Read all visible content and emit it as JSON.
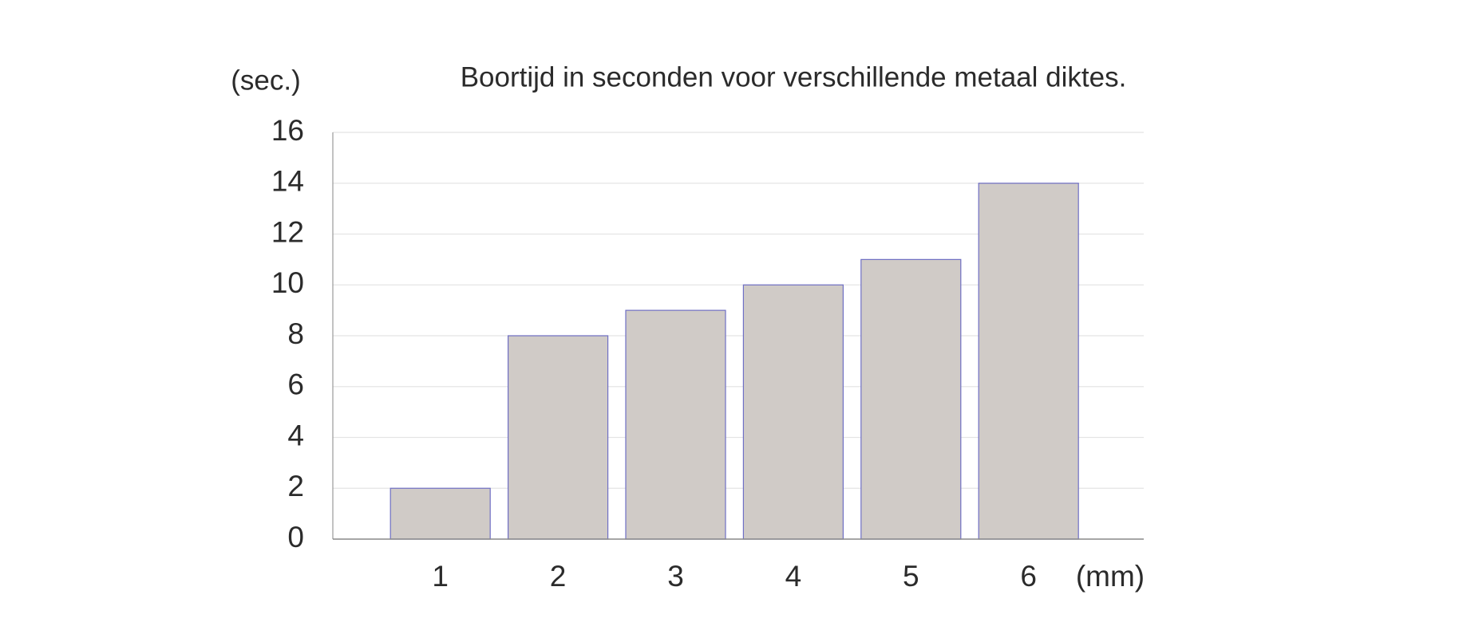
{
  "chart_data": {
    "type": "bar",
    "title": "Boortijd in seconden voor verschillende metaal diktes.",
    "y_label": "(sec.)",
    "x_label": "(mm)",
    "categories": [
      "1",
      "2",
      "3",
      "4",
      "5",
      "6"
    ],
    "values": [
      2,
      8,
      9,
      10,
      11,
      14
    ],
    "color": "#d0cbc7",
    "ylim": [
      0,
      16
    ],
    "yticks": [
      0,
      2,
      4,
      6,
      8,
      10,
      12,
      14,
      16
    ],
    "grid": true
  }
}
